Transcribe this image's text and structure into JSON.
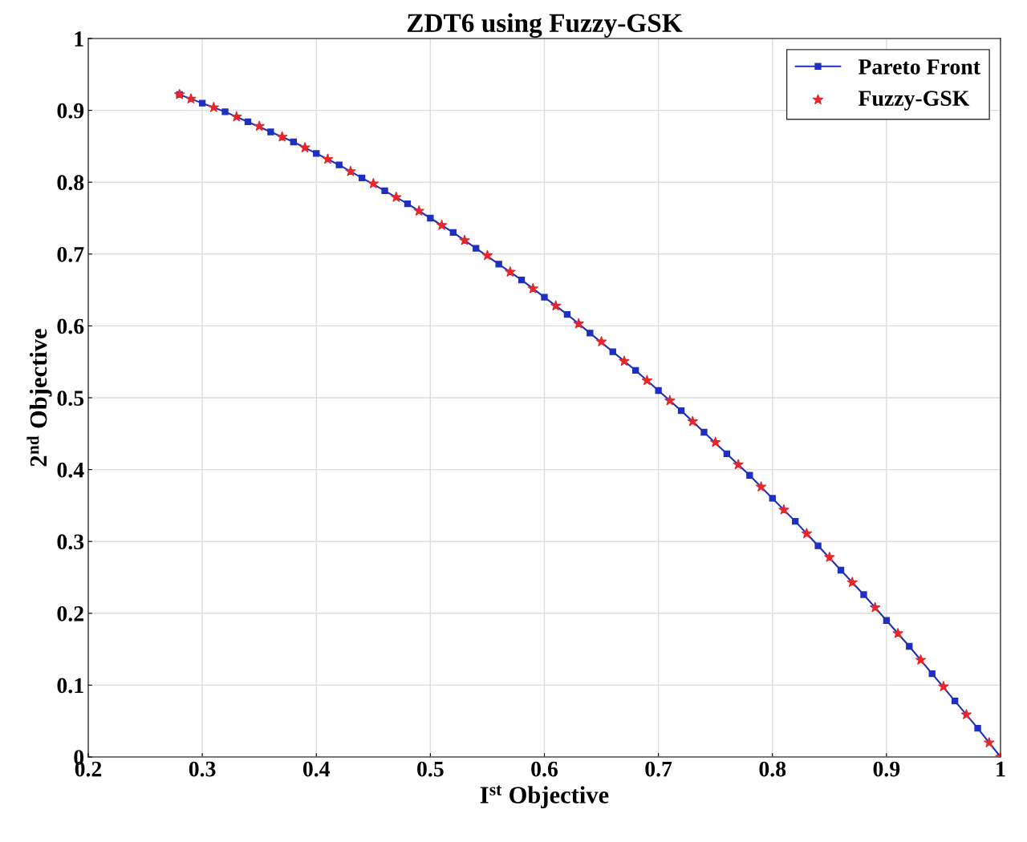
{
  "chart_data": {
    "type": "line",
    "title": "ZDT6 using Fuzzy-GSK",
    "xlabel": "I$^{st}$ Objective",
    "ylabel": "2$^{nd}$ Objective",
    "xlim": [
      0.2,
      1
    ],
    "ylim": [
      0,
      1
    ],
    "xticks": [
      0.2,
      0.3,
      0.4,
      0.5,
      0.6,
      0.7,
      0.8,
      0.9,
      1
    ],
    "yticks": [
      0,
      0.1,
      0.2,
      0.3,
      0.4,
      0.5,
      0.6,
      0.7,
      0.8,
      0.9,
      1
    ],
    "grid": true,
    "legend": "top right",
    "series": [
      {
        "name": "Pareto Front",
        "color": "#1f2fbf",
        "marker": "square",
        "line_style": "solid",
        "x": [
          0.28,
          0.3,
          0.32,
          0.34,
          0.36,
          0.38,
          0.4,
          0.42,
          0.44,
          0.46,
          0.48,
          0.5,
          0.52,
          0.54,
          0.56,
          0.58,
          0.6,
          0.62,
          0.64,
          0.66,
          0.68,
          0.7,
          0.72,
          0.74,
          0.76,
          0.78,
          0.8,
          0.82,
          0.84,
          0.86,
          0.88,
          0.9,
          0.92,
          0.94,
          0.96,
          0.98,
          1.0
        ],
        "values": [
          0.922,
          0.91,
          0.898,
          0.884,
          0.87,
          0.856,
          0.84,
          0.824,
          0.806,
          0.788,
          0.77,
          0.75,
          0.73,
          0.708,
          0.686,
          0.664,
          0.64,
          0.616,
          0.59,
          0.564,
          0.538,
          0.51,
          0.482,
          0.452,
          0.422,
          0.392,
          0.36,
          0.328,
          0.294,
          0.26,
          0.226,
          0.19,
          0.154,
          0.116,
          0.078,
          0.04,
          0
        ]
      },
      {
        "name": "Fuzzy-GSK",
        "type": "scatter",
        "color": "#e8262b",
        "marker": "star",
        "x": [
          0.28,
          0.29,
          0.31,
          0.33,
          0.35,
          0.37,
          0.39,
          0.41,
          0.43,
          0.45,
          0.47,
          0.49,
          0.51,
          0.53,
          0.55,
          0.57,
          0.59,
          0.61,
          0.63,
          0.65,
          0.67,
          0.69,
          0.71,
          0.73,
          0.75,
          0.77,
          0.79,
          0.81,
          0.83,
          0.85,
          0.87,
          0.89,
          0.91,
          0.93,
          0.95,
          0.97,
          0.99,
          1.0
        ],
        "values": [
          0.922,
          0.916,
          0.904,
          0.891,
          0.878,
          0.863,
          0.848,
          0.832,
          0.815,
          0.798,
          0.779,
          0.76,
          0.74,
          0.719,
          0.698,
          0.675,
          0.652,
          0.628,
          0.603,
          0.578,
          0.551,
          0.524,
          0.496,
          0.467,
          0.438,
          0.407,
          0.376,
          0.344,
          0.311,
          0.278,
          0.243,
          0.208,
          0.172,
          0.135,
          0.098,
          0.059,
          0.02,
          0
        ]
      }
    ]
  }
}
